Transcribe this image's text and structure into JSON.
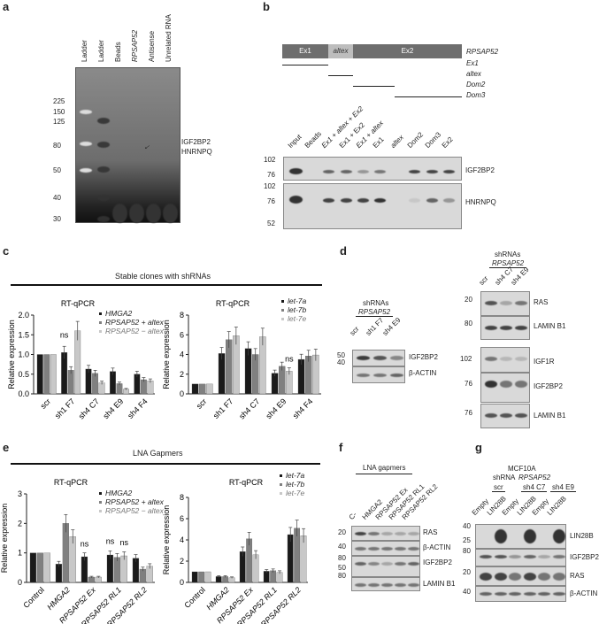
{
  "panels": {
    "a": "a",
    "b": "b",
    "c": "c",
    "d": "d",
    "e": "e",
    "f": "f",
    "g": "g"
  },
  "a": {
    "lanes": [
      "Ladder",
      "Ladder",
      "Beads",
      "RPSAP52",
      "Antisense",
      "Unrelated RNA"
    ],
    "markers": [
      "225",
      "150",
      "125",
      "80",
      "50",
      "40",
      "30"
    ],
    "labels": [
      "IGF2BP2",
      "HNRNPQ"
    ]
  },
  "b": {
    "segments": [
      "Ex1",
      "altex",
      "Ex2"
    ],
    "gene": "RPSAP52",
    "constructs": [
      "Ex1",
      "altex",
      "Dom2",
      "Dom3"
    ],
    "lanes": [
      "Input",
      "Beads",
      "Ex1 + altex + Ex2",
      "Ex1 + Ex2",
      "Ex1 + altex",
      "Ex1",
      "altex",
      "Dom2",
      "Dom3",
      "Ex2"
    ],
    "blots": [
      {
        "label": "IGF2BP2",
        "markers": [
          "102",
          "76"
        ]
      },
      {
        "label": "HNRNPQ",
        "markers": [
          "102",
          "76",
          "52"
        ]
      }
    ]
  },
  "c": {
    "header": "Stable clones with shRNAs"
  },
  "d": {
    "left": {
      "title": "shRNAs",
      "gene": "RPSAP52",
      "lanes": [
        "scr",
        "sh1 F7",
        "sh4 E9"
      ],
      "blots": [
        {
          "label": "IGF2BP2",
          "marker": "50"
        },
        {
          "label": "β-ACTIN",
          "marker": "40"
        }
      ]
    },
    "right": {
      "title": "shRNAs",
      "gene": "RPSAP52",
      "lanes": [
        "scr",
        "sh4 C7",
        "sh4 E9"
      ],
      "blots": [
        {
          "label": "RAS",
          "marker": "20"
        },
        {
          "label": "LAMIN B1",
          "marker": "80"
        },
        {
          "label": "IGF1R",
          "marker": "102"
        },
        {
          "label": "IGF2BP2",
          "marker": "76"
        },
        {
          "label": "LAMIN B1",
          "marker": "76"
        }
      ]
    }
  },
  "e": {
    "header": "LNA Gapmers"
  },
  "f": {
    "title": "LNA gapmers",
    "lanes": [
      "C-",
      "HMGA2",
      "RPSAP52 Ex",
      "RPSAP52 RL1",
      "RPSAP52 RL2"
    ],
    "blots": [
      {
        "label": "RAS",
        "marker": "20"
      },
      {
        "label": "β-ACTIN",
        "marker": "40"
      },
      {
        "label": "IGF2BP2",
        "marker": "80"
      },
      {
        "label": "LAMIN B1",
        "marker": "80"
      }
    ],
    "extra_marker": "50"
  },
  "g": {
    "title1": "MCF10A",
    "title2": "shRNA",
    "gene": "RPSAP52",
    "groups": [
      "scr",
      "sh4 C7",
      "sh4 E9"
    ],
    "lanes": [
      "Empty",
      "LIN28B",
      "Empty",
      "LIN28B",
      "Empty",
      "LIN28B"
    ],
    "blots": [
      {
        "label": "LIN28B",
        "markers": [
          "40",
          "25"
        ]
      },
      {
        "label": "IGF2BP2",
        "markers": [
          "80"
        ]
      },
      {
        "label": "RAS",
        "markers": [
          "20"
        ]
      },
      {
        "label": "β-ACTIN",
        "markers": [
          "40"
        ]
      }
    ]
  },
  "colors": {
    "s1": "#1a1a1a",
    "s2": "#808080",
    "s3": "#c8c8c8"
  },
  "chart_data": [
    {
      "type": "bar",
      "title": "RT-qPCR",
      "ylabel": "Relative expression",
      "ylim": [
        0,
        2
      ],
      "yticks": [
        "0.0",
        "0.5",
        "1.0",
        "1.5",
        "2.0"
      ],
      "categories": [
        "scr",
        "sh1 F7",
        "sh4 C7",
        "sh4 E9",
        "sh4 F4"
      ],
      "legend": "top-right",
      "series": [
        {
          "name": "HMGA2",
          "values": [
            1,
            1.05,
            0.63,
            0.57,
            0.5
          ]
        },
        {
          "name": "RPSAP52 + altex",
          "values": [
            1,
            0.6,
            0.52,
            0.26,
            0.36
          ]
        },
        {
          "name": "RPSAP52 − altex",
          "values": [
            1,
            1.6,
            0.28,
            0.12,
            0.33
          ]
        }
      ],
      "annotations": [
        "ns"
      ]
    },
    {
      "type": "bar",
      "title": "RT-qPCR",
      "ylabel": "Relative expression",
      "ylim": [
        0,
        8
      ],
      "yticks": [
        "0",
        "2",
        "4",
        "6",
        "8"
      ],
      "categories": [
        "scr",
        "sh1 F7",
        "sh4 C7",
        "sh4 E9",
        "sh4 F4"
      ],
      "legend": "top-right",
      "series": [
        {
          "name": "let-7a",
          "values": [
            1,
            4.1,
            4.6,
            2.1,
            3.5
          ]
        },
        {
          "name": "let-7b",
          "values": [
            1,
            5.5,
            4.0,
            2.8,
            3.85
          ]
        },
        {
          "name": "let-7e",
          "values": [
            1,
            5.9,
            5.8,
            2.3,
            3.95
          ]
        }
      ],
      "annotations": [
        "ns"
      ]
    },
    {
      "type": "bar",
      "title": "RT-qPCR",
      "ylabel": "Relative expression",
      "ylim": [
        0,
        3
      ],
      "yticks": [
        "0",
        "1",
        "2",
        "3"
      ],
      "categories": [
        "Control",
        "HMGA2",
        "RPSAP52 Ex",
        "RPSAP52 RL1",
        "RPSAP52 RL2"
      ],
      "legend": "top-right",
      "series": [
        {
          "name": "HMGA2",
          "values": [
            1,
            0.62,
            0.87,
            0.93,
            0.82
          ]
        },
        {
          "name": "RPSAP52 + altex",
          "values": [
            1,
            2.0,
            0.18,
            0.85,
            0.45
          ]
        },
        {
          "name": "RPSAP52 − altex",
          "values": [
            1,
            1.55,
            0.18,
            0.9,
            0.55
          ]
        }
      ],
      "annotations": [
        "ns",
        "ns",
        "ns"
      ]
    },
    {
      "type": "bar",
      "title": "RT-qPCR",
      "ylabel": "Relative expression",
      "ylim": [
        0,
        8
      ],
      "yticks": [
        "0",
        "2",
        "4",
        "6",
        "8"
      ],
      "categories": [
        "Control",
        "HMGA2",
        "RPSAP52 Ex",
        "RPSAP52 RL1",
        "RPSAP52 RL2"
      ],
      "legend": "top-right",
      "series": [
        {
          "name": "let-7a",
          "values": [
            1,
            0.55,
            2.9,
            1.05,
            4.5
          ]
        },
        {
          "name": "let-7b",
          "values": [
            1,
            0.55,
            4.1,
            1.1,
            5.1
          ]
        },
        {
          "name": "let-7e",
          "values": [
            1,
            0.45,
            2.6,
            0.95,
            4.4
          ]
        }
      ]
    }
  ]
}
